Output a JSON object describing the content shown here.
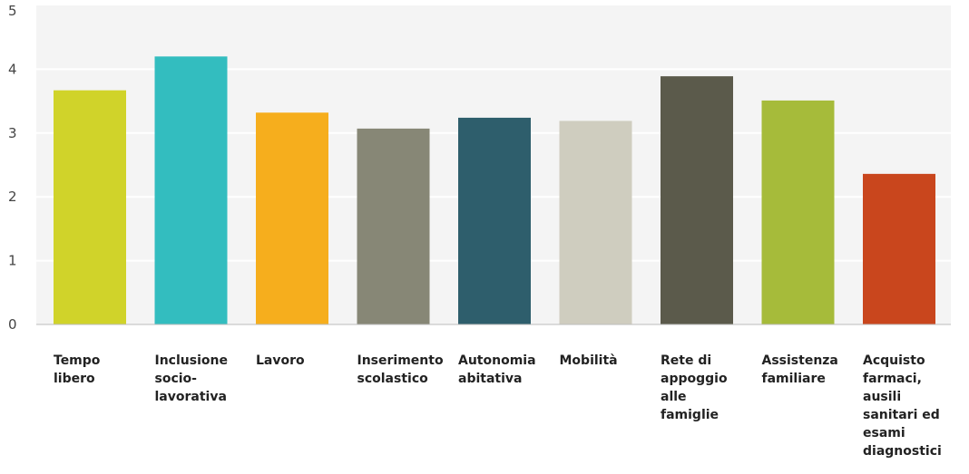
{
  "chart_data": {
    "type": "bar",
    "title": "",
    "xlabel": "",
    "ylabel": "",
    "ylim": [
      0,
      5
    ],
    "yticks": [
      "0",
      "1",
      "2",
      "3",
      "4",
      "5"
    ],
    "grid": true,
    "categories": [
      "Tempo\nlibero",
      "Inclusione\nsocio-\nlavorativa",
      "Lavoro",
      "Inserimento\nscolastico",
      "Autonomia\nabitativa",
      "Mobilità",
      "Rete di\nappoggio\nalle\nfamiglie",
      "Assistenza\nfamiliare",
      "Acquisto\nfarmaci,\nausili\nsanitari ed\nesami\ndiagnostici"
    ],
    "values": [
      3.67,
      4.2,
      3.32,
      3.07,
      3.24,
      3.19,
      3.89,
      3.51,
      2.36
    ],
    "colors": [
      "#d0d32a",
      "#33bdbf",
      "#f6ae1d",
      "#878776",
      "#2e5e6c",
      "#cfcdbf",
      "#5b5a4b",
      "#a6bb3a",
      "#c9461d"
    ]
  }
}
